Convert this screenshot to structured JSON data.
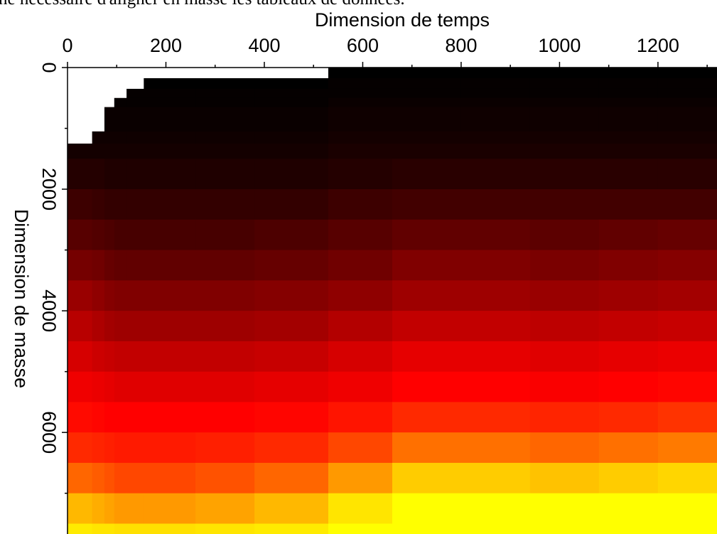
{
  "chart_data": {
    "type": "heatmap",
    "caption_fragment": "ne nécessaire d'aligner en masse les tableaux de données.",
    "x_label": "Dimension de temps",
    "y_label": "Dimension de masse",
    "xlim": [
      0,
      1320
    ],
    "ylim": [
      0,
      7670
    ],
    "y_inverted": true,
    "x_axis_position": "top",
    "xticks": [
      0,
      200,
      400,
      600,
      800,
      1000,
      1200
    ],
    "xminorticks": [
      100,
      300,
      500,
      700,
      900,
      1100,
      1300
    ],
    "yticks": [
      0,
      2000,
      4000,
      6000
    ],
    "yminorticks": [
      1000,
      3000,
      5000,
      7000
    ],
    "colorscale": [
      [
        0,
        "#000000"
      ],
      [
        0.5,
        "#ff0000"
      ],
      [
        1,
        "#ffff00"
      ]
    ],
    "x_bins": [
      0,
      50,
      75,
      95,
      120,
      155,
      260,
      380,
      530,
      660,
      800,
      940,
      1080,
      1200,
      1320
    ],
    "y_bins": [
      0,
      175,
      350,
      500,
      650,
      1050,
      1250,
      1500,
      2000,
      2500,
      3000,
      3500,
      4000,
      4500,
      5000,
      5500,
      6000,
      6500,
      7000,
      7500,
      8000
    ],
    "z": [
      [
        null,
        null,
        null,
        null,
        null,
        null,
        null,
        null,
        0,
        0,
        0,
        0,
        0,
        0
      ],
      [
        null,
        null,
        null,
        null,
        null,
        0,
        0,
        0,
        0.01,
        0.01,
        0.01,
        0.01,
        0.01,
        0.01
      ],
      [
        null,
        null,
        null,
        null,
        0.01,
        0.01,
        0.01,
        0.01,
        0.01,
        0.01,
        0.01,
        0.01,
        0.01,
        0.01
      ],
      [
        null,
        null,
        null,
        0.01,
        0.01,
        0.01,
        0.01,
        0.01,
        0.02,
        0.02,
        0.02,
        0.02,
        0.02,
        0.02
      ],
      [
        null,
        null,
        0.02,
        0.02,
        0.02,
        0.02,
        0.02,
        0.02,
        0.03,
        0.03,
        0.03,
        0.03,
        0.03,
        0.03
      ],
      [
        null,
        0.03,
        0.03,
        0.03,
        0.03,
        0.03,
        0.03,
        0.03,
        0.04,
        0.04,
        0.04,
        0.04,
        0.04,
        0.04
      ],
      [
        0.04,
        0.04,
        0.04,
        0.04,
        0.04,
        0.04,
        0.04,
        0.04,
        0.05,
        0.05,
        0.05,
        0.05,
        0.05,
        0.05
      ],
      [
        0.07,
        0.07,
        0.06,
        0.06,
        0.06,
        0.06,
        0.06,
        0.06,
        0.07,
        0.08,
        0.08,
        0.08,
        0.08,
        0.08
      ],
      [
        0.12,
        0.11,
        0.1,
        0.1,
        0.1,
        0.1,
        0.1,
        0.1,
        0.12,
        0.13,
        0.13,
        0.13,
        0.13,
        0.13
      ],
      [
        0.17,
        0.16,
        0.15,
        0.14,
        0.14,
        0.14,
        0.14,
        0.15,
        0.17,
        0.19,
        0.19,
        0.18,
        0.19,
        0.2
      ],
      [
        0.23,
        0.22,
        0.2,
        0.19,
        0.19,
        0.19,
        0.19,
        0.2,
        0.22,
        0.25,
        0.25,
        0.24,
        0.25,
        0.26
      ],
      [
        0.3,
        0.28,
        0.26,
        0.25,
        0.25,
        0.25,
        0.25,
        0.26,
        0.28,
        0.31,
        0.31,
        0.3,
        0.31,
        0.32
      ],
      [
        0.36,
        0.34,
        0.32,
        0.31,
        0.31,
        0.31,
        0.31,
        0.32,
        0.35,
        0.38,
        0.38,
        0.37,
        0.38,
        0.39
      ],
      [
        0.42,
        0.4,
        0.39,
        0.38,
        0.38,
        0.38,
        0.38,
        0.39,
        0.42,
        0.45,
        0.45,
        0.44,
        0.45,
        0.46
      ],
      [
        0.47,
        0.46,
        0.45,
        0.44,
        0.44,
        0.44,
        0.44,
        0.45,
        0.47,
        0.5,
        0.5,
        0.49,
        0.5,
        0.51
      ],
      [
        0.52,
        0.51,
        0.5,
        0.5,
        0.5,
        0.5,
        0.5,
        0.51,
        0.54,
        0.58,
        0.58,
        0.57,
        0.58,
        0.6
      ],
      [
        0.58,
        0.57,
        0.56,
        0.55,
        0.55,
        0.55,
        0.56,
        0.58,
        0.64,
        0.72,
        0.72,
        0.7,
        0.72,
        0.74
      ],
      [
        0.7,
        0.68,
        0.66,
        0.64,
        0.64,
        0.64,
        0.66,
        0.7,
        0.8,
        0.9,
        0.9,
        0.88,
        0.9,
        0.92
      ],
      [
        0.86,
        0.84,
        0.82,
        0.8,
        0.8,
        0.8,
        0.82,
        0.86,
        0.95,
        1,
        1,
        1,
        1,
        1
      ],
      [
        0.96,
        0.95,
        0.95,
        0.94,
        0.94,
        0.94,
        0.95,
        0.96,
        1,
        1,
        1,
        1,
        1,
        1
      ]
    ]
  }
}
